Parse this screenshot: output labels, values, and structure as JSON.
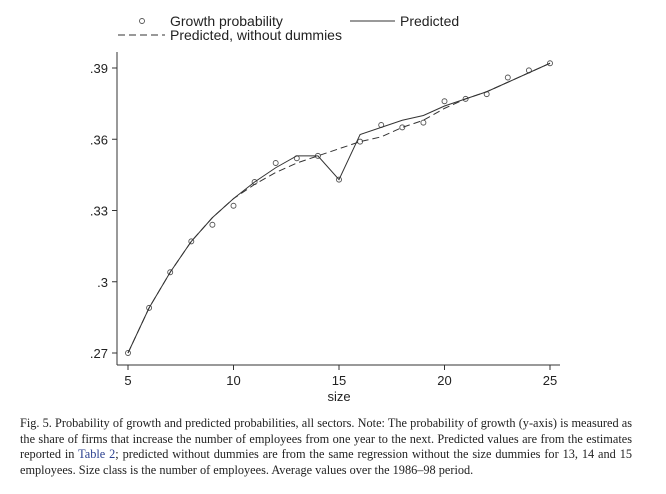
{
  "chart_data": {
    "type": "line",
    "xlabel": "size",
    "ylabel": "",
    "xlim": [
      5,
      25
    ],
    "ylim": [
      0.27,
      0.39
    ],
    "xticks": [
      "5",
      "10",
      "15",
      "20",
      "25"
    ],
    "yticks": [
      ".27",
      ".3",
      ".33",
      ".36",
      ".39"
    ],
    "grid": false,
    "legend_position": "top",
    "x": [
      5,
      6,
      7,
      8,
      9,
      10,
      11,
      12,
      13,
      14,
      15,
      16,
      17,
      18,
      19,
      20,
      21,
      22,
      23,
      24,
      25
    ],
    "series": [
      {
        "name": "Growth probability",
        "style": "markers",
        "values": [
          0.27,
          0.289,
          0.304,
          0.317,
          0.324,
          0.332,
          0.342,
          0.35,
          0.352,
          0.353,
          0.343,
          0.359,
          0.366,
          0.365,
          0.367,
          0.376,
          0.377,
          0.379,
          0.386,
          0.389,
          0.392
        ]
      },
      {
        "name": "Predicted",
        "style": "solid",
        "values": [
          0.27,
          0.289,
          0.304,
          0.317,
          0.327,
          0.335,
          0.342,
          0.348,
          0.353,
          0.353,
          0.343,
          0.362,
          0.365,
          0.368,
          0.37,
          0.374,
          0.377,
          0.38,
          0.384,
          0.388,
          0.392
        ]
      },
      {
        "name": "Predicted, without dummies",
        "style": "dashed",
        "values": [
          0.27,
          0.289,
          0.304,
          0.317,
          0.327,
          0.335,
          0.341,
          0.346,
          0.35,
          0.353,
          0.356,
          0.359,
          0.361,
          0.365,
          0.368,
          0.373,
          0.377,
          0.38,
          0.384,
          0.388,
          0.392
        ]
      }
    ]
  },
  "caption": {
    "text_before": "Fig. 5. Probability of growth and predicted probabilities, all sectors. Note: The probability of growth (y-axis) is measured as the share of firms that increase the number of employees from one year to the next. Predicted values are from the estimates reported in ",
    "link": "Table 2",
    "text_after": "; predicted without dummies are from the same regression without the size dummies for 13, 14 and 15 employees. Size class is the number of employees. Average values over the 1986–98 period."
  }
}
